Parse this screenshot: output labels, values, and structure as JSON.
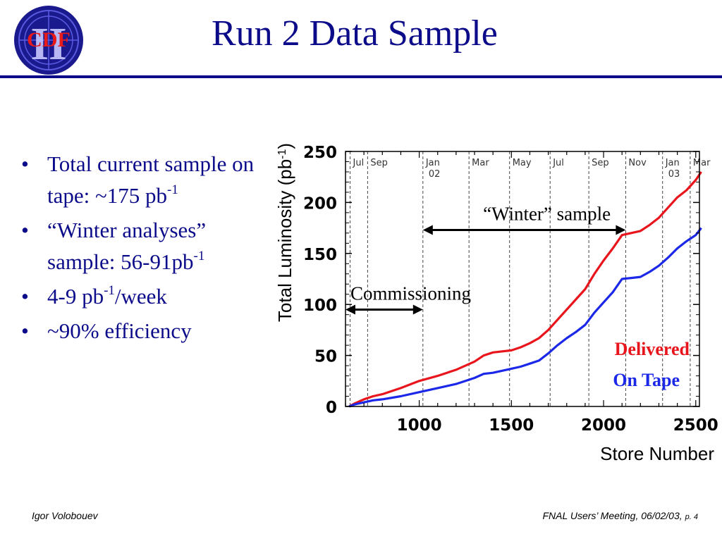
{
  "slide": {
    "title": "Run 2 Data Sample",
    "logo": {
      "text": "CDF",
      "roman": "II",
      "icon": "cdf-ii-logo"
    },
    "footer": {
      "author": "Igor Volobouev",
      "meeting": "FNAL Users’ Meeting, 06/02/03,",
      "page": "p. 4"
    }
  },
  "bullets": [
    {
      "parts": [
        "Total current sample on tape: ~175 pb",
        "-1",
        ""
      ]
    },
    {
      "parts": [
        "“Winter analyses” sample: 56-91pb",
        "-1",
        ""
      ]
    },
    {
      "parts": [
        "4-9 pb",
        "-1",
        "/week"
      ]
    },
    {
      "parts": [
        "~90% efficiency",
        "",
        ""
      ]
    }
  ],
  "chart_data": {
    "type": "line",
    "xlabel": "Store Number",
    "ylabel": "Total Luminosity (pb",
    "ylabel_sup": "-1",
    "ylabel_end": ")",
    "xlim": [
      600,
      2520
    ],
    "ylim": [
      0,
      250
    ],
    "xticks": [
      1000,
      1500,
      2000,
      2500
    ],
    "yticks": [
      0,
      50,
      100,
      150,
      200,
      250
    ],
    "grid": false,
    "month_markers": [
      {
        "x": 625,
        "label": "Jul",
        "label2": ""
      },
      {
        "x": 720,
        "label": "Sep",
        "label2": ""
      },
      {
        "x": 1020,
        "label": "Jan",
        "label2": "02"
      },
      {
        "x": 1270,
        "label": "Mar",
        "label2": ""
      },
      {
        "x": 1490,
        "label": "May",
        "label2": ""
      },
      {
        "x": 1710,
        "label": "Jul",
        "label2": ""
      },
      {
        "x": 1920,
        "label": "Sep",
        "label2": ""
      },
      {
        "x": 2120,
        "label": "Nov",
        "label2": ""
      },
      {
        "x": 2320,
        "label": "Jan",
        "label2": "03"
      },
      {
        "x": 2470,
        "label": "Mar",
        "label2": ""
      }
    ],
    "annotations": [
      {
        "text": "Commissioning",
        "x_start": 600,
        "x_end": 1020,
        "y": 95
      },
      {
        "text": "“Winter” sample",
        "x_start": 1020,
        "x_end": 2120,
        "y": 173
      }
    ],
    "series": [
      {
        "name": "Delivered",
        "color": "#e8161c",
        "x": [
          620,
          650,
          700,
          750,
          800,
          900,
          1000,
          1100,
          1200,
          1300,
          1350,
          1400,
          1500,
          1550,
          1600,
          1650,
          1700,
          1750,
          1800,
          1850,
          1900,
          1950,
          2000,
          2050,
          2100,
          2150,
          2200,
          2250,
          2300,
          2350,
          2400,
          2450,
          2500,
          2530
        ],
        "y": [
          0,
          3,
          7,
          10,
          12,
          18,
          25,
          30,
          36,
          44,
          50,
          53,
          55,
          58,
          62,
          67,
          75,
          85,
          95,
          105,
          115,
          130,
          143,
          155,
          168,
          170,
          172,
          178,
          185,
          195,
          205,
          212,
          222,
          230
        ]
      },
      {
        "name": "On Tape",
        "color": "#1c28e8",
        "x": [
          620,
          650,
          700,
          750,
          800,
          900,
          1000,
          1100,
          1200,
          1300,
          1350,
          1400,
          1500,
          1550,
          1600,
          1650,
          1700,
          1750,
          1800,
          1850,
          1900,
          1950,
          2000,
          2050,
          2100,
          2150,
          2200,
          2250,
          2300,
          2350,
          2400,
          2450,
          2500,
          2530
        ],
        "y": [
          0,
          2,
          4,
          6,
          7,
          10,
          14,
          18,
          22,
          28,
          32,
          33,
          37,
          39,
          42,
          45,
          52,
          60,
          67,
          73,
          80,
          92,
          102,
          112,
          125,
          126,
          127,
          132,
          138,
          146,
          155,
          162,
          168,
          175
        ]
      }
    ]
  }
}
